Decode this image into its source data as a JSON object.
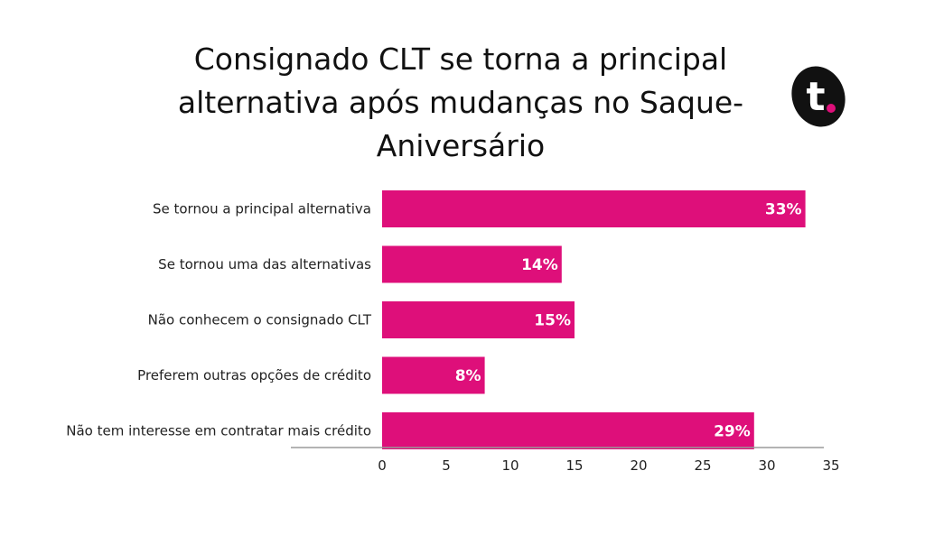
{
  "chart_data": {
    "type": "bar",
    "orientation": "horizontal",
    "title": "Consignado CLT se torna a principal alternativa após mudanças no Saque-Aniversário",
    "categories": [
      "Se tornou a principal alternativa",
      "Se tornou uma das alternativas",
      "Não conhecem o consignado CLT",
      "Preferem outras opções de crédito",
      "Não tem interesse em contratar mais crédito"
    ],
    "values": [
      33,
      14,
      15,
      8,
      29
    ],
    "value_labels": [
      "33%",
      "14%",
      "15%",
      "8%",
      "29%"
    ],
    "xlim": [
      0,
      35
    ],
    "x_ticks": [
      0,
      5,
      10,
      15,
      20,
      25,
      30,
      35
    ],
    "xlabel": "",
    "ylabel": "",
    "grid": false,
    "bar_color": "#DE0F7A"
  },
  "brand": {
    "logo_letter": "t",
    "logo_bg_color": "#111111",
    "logo_accent_color": "#DE0F7A"
  }
}
